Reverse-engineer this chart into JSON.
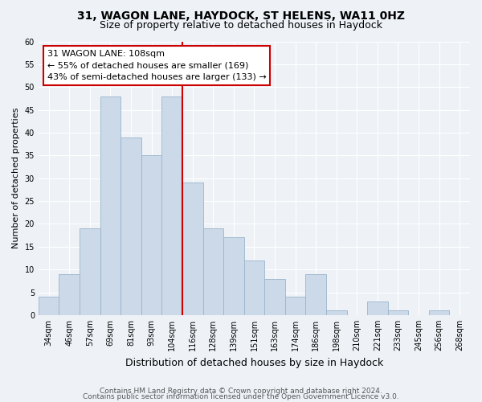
{
  "title": "31, WAGON LANE, HAYDOCK, ST HELENS, WA11 0HZ",
  "subtitle": "Size of property relative to detached houses in Haydock",
  "xlabel": "Distribution of detached houses by size in Haydock",
  "ylabel": "Number of detached properties",
  "footer_line1": "Contains HM Land Registry data © Crown copyright and database right 2024.",
  "footer_line2": "Contains public sector information licensed under the Open Government Licence v3.0.",
  "bin_labels": [
    "34sqm",
    "46sqm",
    "57sqm",
    "69sqm",
    "81sqm",
    "93sqm",
    "104sqm",
    "116sqm",
    "128sqm",
    "139sqm",
    "151sqm",
    "163sqm",
    "174sqm",
    "186sqm",
    "198sqm",
    "210sqm",
    "221sqm",
    "233sqm",
    "245sqm",
    "256sqm",
    "268sqm"
  ],
  "bar_heights": [
    4,
    9,
    19,
    48,
    39,
    35,
    48,
    29,
    19,
    17,
    12,
    8,
    4,
    9,
    1,
    0,
    3,
    1,
    0,
    1,
    0
  ],
  "bar_color": "#ccd9e8",
  "bar_edge_color": "#9ab4cc",
  "highlight_index": 7,
  "highlight_line_color": "#cc0000",
  "ylim": [
    0,
    60
  ],
  "yticks": [
    0,
    5,
    10,
    15,
    20,
    25,
    30,
    35,
    40,
    45,
    50,
    55,
    60
  ],
  "annotation_title": "31 WAGON LANE: 108sqm",
  "annotation_line1": "← 55% of detached houses are smaller (169)",
  "annotation_line2": "43% of semi-detached houses are larger (133) →",
  "annotation_box_color": "#ffffff",
  "annotation_box_edge_color": "#cc0000",
  "bg_color": "#eef2f7",
  "title_fontsize": 10,
  "subtitle_fontsize": 9,
  "xlabel_fontsize": 9,
  "ylabel_fontsize": 8,
  "annotation_fontsize": 8,
  "tick_fontsize": 7,
  "footer_fontsize": 6.5
}
